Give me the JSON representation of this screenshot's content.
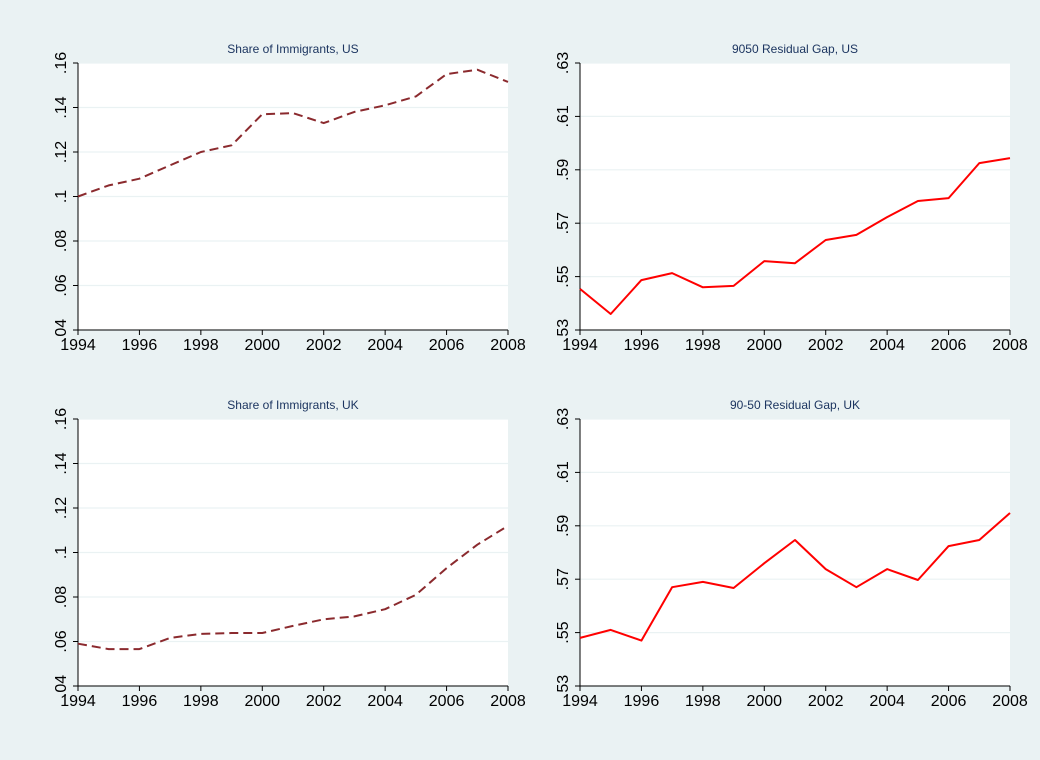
{
  "chart_data": [
    {
      "type": "line",
      "title": "Share of Immigrants, US",
      "x": [
        1994,
        1995,
        1996,
        1997,
        1998,
        1999,
        2000,
        2001,
        2002,
        2003,
        2004,
        2005,
        2006,
        2007,
        2008
      ],
      "values": [
        0.1,
        0.105,
        0.108,
        0.114,
        0.12,
        0.123,
        0.137,
        0.1375,
        0.133,
        0.138,
        0.141,
        0.145,
        0.155,
        0.157,
        0.1515
      ],
      "color": "#8b2a2e",
      "line_style": "dashed",
      "xlim": [
        1994,
        2008
      ],
      "xticks": [
        1994,
        1996,
        1998,
        2000,
        2002,
        2004,
        2006,
        2008
      ],
      "ylim": [
        0.04,
        0.16
      ],
      "yticks": [
        {
          "value": 0.04,
          "label": ".04"
        },
        {
          "value": 0.06,
          "label": ".06"
        },
        {
          "value": 0.08,
          "label": ".08"
        },
        {
          "value": 0.1,
          "label": ".1"
        },
        {
          "value": 0.12,
          "label": ".12"
        },
        {
          "value": 0.14,
          "label": ".14"
        },
        {
          "value": 0.16,
          "label": ".16"
        }
      ],
      "grid": true
    },
    {
      "type": "line",
      "title": "9050 Residual Gap, US",
      "x": [
        1994,
        1995,
        1996,
        1997,
        1998,
        1999,
        2000,
        2001,
        2002,
        2003,
        2004,
        2005,
        2006,
        2007,
        2008
      ],
      "values": [
        0.5454,
        0.536,
        0.5487,
        0.5513,
        0.546,
        0.5465,
        0.5558,
        0.555,
        0.5637,
        0.5656,
        0.5723,
        0.5783,
        0.5794,
        0.5925,
        0.5944
      ],
      "color": "#ff0000",
      "line_style": "solid",
      "xlim": [
        1994,
        2008
      ],
      "xticks": [
        1994,
        1996,
        1998,
        2000,
        2002,
        2004,
        2006,
        2008
      ],
      "ylim": [
        0.53,
        0.63
      ],
      "yticks": [
        {
          "value": 0.53,
          "label": ".53"
        },
        {
          "value": 0.55,
          "label": ".55"
        },
        {
          "value": 0.57,
          "label": ".57"
        },
        {
          "value": 0.59,
          "label": ".59"
        },
        {
          "value": 0.61,
          "label": ".61"
        },
        {
          "value": 0.63,
          "label": ".63"
        }
      ],
      "grid": true
    },
    {
      "type": "line",
      "title": "Share of Immigrants, UK",
      "x": [
        1994,
        1995,
        1996,
        1997,
        1998,
        1999,
        2000,
        2001,
        2002,
        2003,
        2004,
        2005,
        2006,
        2007,
        2008
      ],
      "values": [
        0.059,
        0.0566,
        0.0566,
        0.0616,
        0.0634,
        0.0638,
        0.0638,
        0.067,
        0.07,
        0.0713,
        0.0745,
        0.081,
        0.093,
        0.1035,
        0.112
      ],
      "color": "#8b2a2e",
      "line_style": "dashed",
      "xlim": [
        1994,
        2008
      ],
      "xticks": [
        1994,
        1996,
        1998,
        2000,
        2002,
        2004,
        2006,
        2008
      ],
      "ylim": [
        0.04,
        0.16
      ],
      "yticks": [
        {
          "value": 0.04,
          "label": ".04"
        },
        {
          "value": 0.06,
          "label": ".06"
        },
        {
          "value": 0.08,
          "label": ".08"
        },
        {
          "value": 0.1,
          "label": ".1"
        },
        {
          "value": 0.12,
          "label": ".12"
        },
        {
          "value": 0.14,
          "label": ".14"
        },
        {
          "value": 0.16,
          "label": ".16"
        }
      ],
      "grid": true
    },
    {
      "type": "line",
      "title": "90-50 Residual Gap, UK",
      "x": [
        1994,
        1995,
        1996,
        1997,
        1998,
        1999,
        2000,
        2001,
        2002,
        2003,
        2004,
        2005,
        2006,
        2007,
        2008
      ],
      "values": [
        0.548,
        0.551,
        0.547,
        0.567,
        0.569,
        0.5667,
        0.576,
        0.5847,
        0.5738,
        0.567,
        0.5738,
        0.5697,
        0.5824,
        0.5847,
        0.5948
      ],
      "color": "#ff0000",
      "line_style": "solid",
      "xlim": [
        1994,
        2008
      ],
      "xticks": [
        1994,
        1996,
        1998,
        2000,
        2002,
        2004,
        2006,
        2008
      ],
      "ylim": [
        0.53,
        0.63
      ],
      "yticks": [
        {
          "value": 0.53,
          "label": ".53"
        },
        {
          "value": 0.55,
          "label": ".55"
        },
        {
          "value": 0.57,
          "label": ".57"
        },
        {
          "value": 0.59,
          "label": ".59"
        },
        {
          "value": 0.61,
          "label": ".61"
        },
        {
          "value": 0.63,
          "label": ".63"
        }
      ],
      "grid": true
    }
  ]
}
